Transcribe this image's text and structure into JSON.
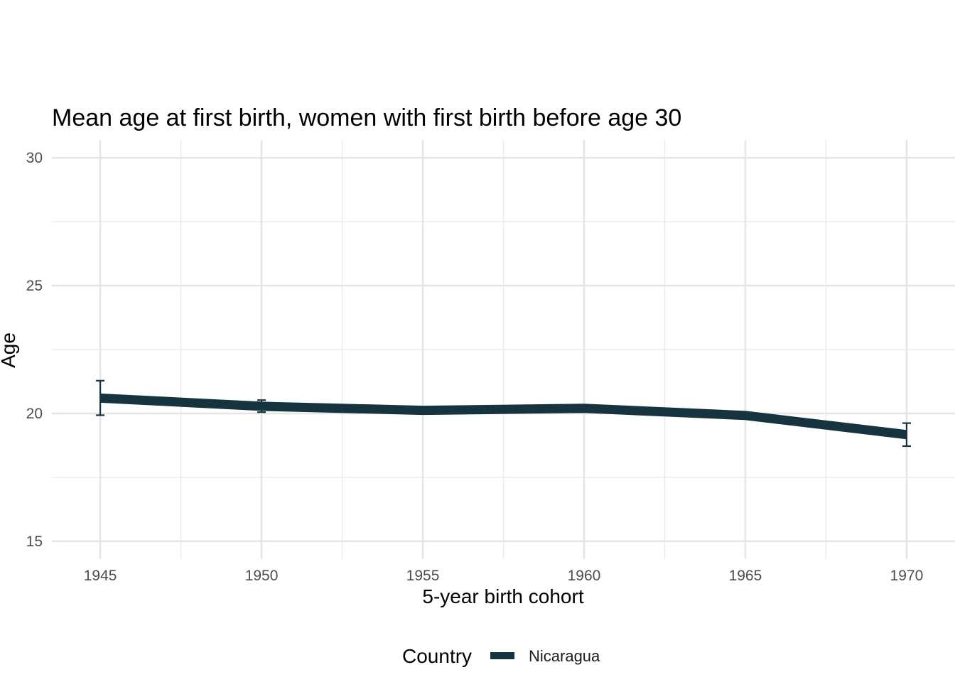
{
  "chart_data": {
    "type": "line",
    "title": "Mean age at first birth, women with first birth before age 30",
    "xlabel": "5-year birth cohort",
    "ylabel": "Age",
    "x": [
      1945,
      1950,
      1955,
      1960,
      1965,
      1970
    ],
    "x_ticks": [
      "1945",
      "1950",
      "1955",
      "1960",
      "1965",
      "1970"
    ],
    "y_ticks": [
      "15",
      "20",
      "25",
      "30"
    ],
    "y_tick_values": [
      15,
      20,
      25,
      30
    ],
    "xlim": [
      1943.5,
      1971.5
    ],
    "ylim": [
      14.3,
      30.7
    ],
    "grid": true,
    "legend": {
      "title": "Country",
      "placement": "bottom",
      "entries": [
        "Nicaragua"
      ]
    },
    "series": [
      {
        "name": "Nicaragua",
        "color": "#15343f",
        "values": [
          20.6,
          20.28,
          20.12,
          20.2,
          19.92,
          19.17
        ],
        "error_low": [
          19.93,
          20.05,
          19.98,
          20.1,
          19.8,
          18.72
        ],
        "error_high": [
          21.28,
          20.52,
          20.24,
          20.3,
          20.03,
          19.62
        ]
      }
    ]
  }
}
